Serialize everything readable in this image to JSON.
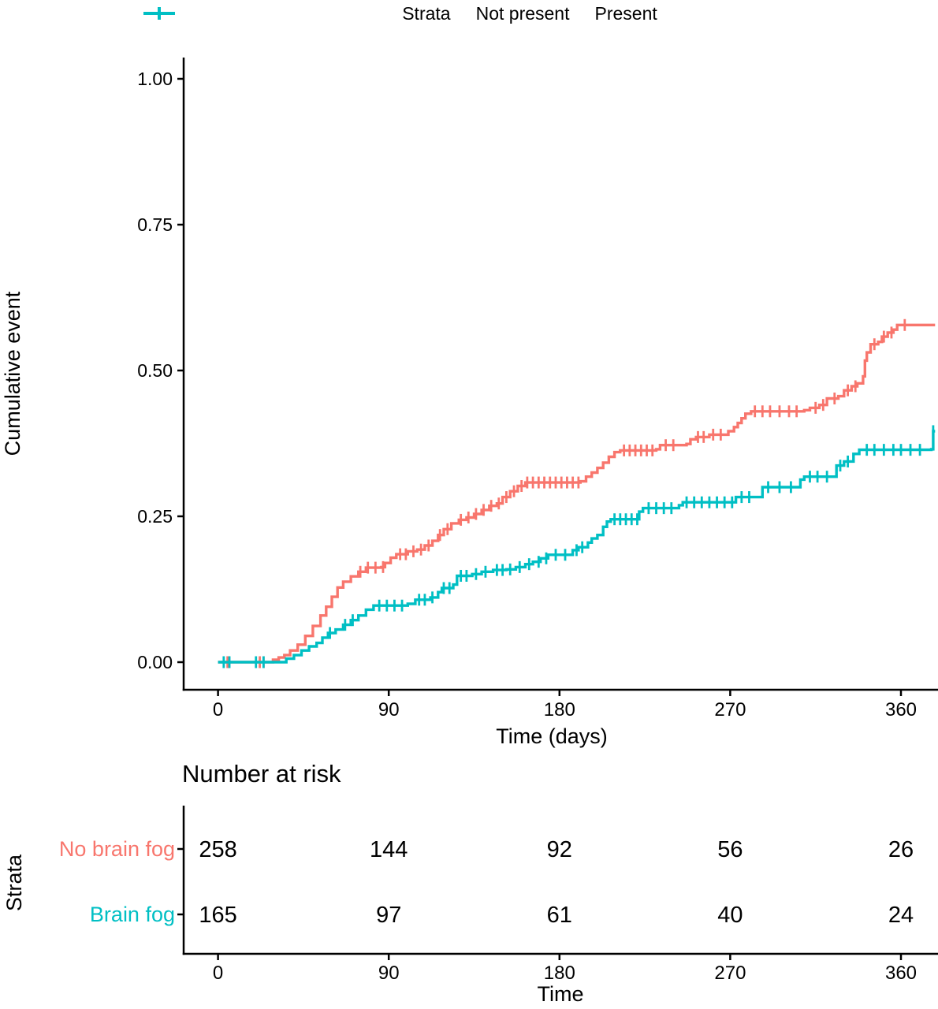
{
  "legend": {
    "title": "Strata",
    "entries": [
      {
        "label": "Not present",
        "color": "#F8766D"
      },
      {
        "label": "Present",
        "color": "#00BFC4"
      }
    ]
  },
  "chart_data": {
    "type": "line",
    "subtype": "kaplan-meier-cumulative-event-step-plot",
    "title": "",
    "xlabel": "Time (days)",
    "ylabel": "Cumulative event",
    "xlim": [
      0,
      378
    ],
    "ylim": [
      0,
      1
    ],
    "grid": false,
    "legend_position": "top",
    "xticks": [
      0,
      90,
      180,
      270,
      360
    ],
    "yticks": [
      0,
      0.25,
      0.5,
      0.75,
      1
    ],
    "ytick_labels": [
      "0.00",
      "0.25",
      "0.50",
      "0.75",
      "1.00"
    ],
    "series": [
      {
        "name": "Not present",
        "color": "#F8766D",
        "steps": [
          [
            0,
            0
          ],
          [
            27,
            0
          ],
          [
            29,
            0.004
          ],
          [
            32,
            0.008
          ],
          [
            35,
            0.012
          ],
          [
            38,
            0.02
          ],
          [
            42,
            0.03
          ],
          [
            46,
            0.045
          ],
          [
            50,
            0.062
          ],
          [
            54,
            0.08
          ],
          [
            57,
            0.095
          ],
          [
            60,
            0.112
          ],
          [
            63,
            0.128
          ],
          [
            66,
            0.138
          ],
          [
            70,
            0.147
          ],
          [
            74,
            0.155
          ],
          [
            78,
            0.162
          ],
          [
            86,
            0.163
          ],
          [
            88,
            0.17
          ],
          [
            91,
            0.179
          ],
          [
            94,
            0.185
          ],
          [
            100,
            0.19
          ],
          [
            105,
            0.193
          ],
          [
            109,
            0.2
          ],
          [
            113,
            0.208
          ],
          [
            116,
            0.218
          ],
          [
            119,
            0.228
          ],
          [
            123,
            0.238
          ],
          [
            127,
            0.244
          ],
          [
            131,
            0.248
          ],
          [
            135,
            0.254
          ],
          [
            139,
            0.261
          ],
          [
            143,
            0.268
          ],
          [
            147,
            0.272
          ],
          [
            150,
            0.283
          ],
          [
            154,
            0.293
          ],
          [
            158,
            0.302
          ],
          [
            162,
            0.308
          ],
          [
            191,
            0.31
          ],
          [
            194,
            0.318
          ],
          [
            197,
            0.325
          ],
          [
            200,
            0.333
          ],
          [
            203,
            0.342
          ],
          [
            206,
            0.352
          ],
          [
            209,
            0.36
          ],
          [
            212,
            0.363
          ],
          [
            231,
            0.365
          ],
          [
            233,
            0.372
          ],
          [
            247,
            0.374
          ],
          [
            249,
            0.382
          ],
          [
            252,
            0.386
          ],
          [
            259,
            0.39
          ],
          [
            269,
            0.396
          ],
          [
            272,
            0.403
          ],
          [
            274,
            0.41
          ],
          [
            276,
            0.418
          ],
          [
            278,
            0.426
          ],
          [
            281,
            0.43
          ],
          [
            309,
            0.432
          ],
          [
            312,
            0.436
          ],
          [
            317,
            0.441
          ],
          [
            321,
            0.452
          ],
          [
            327,
            0.456
          ],
          [
            330,
            0.466
          ],
          [
            334,
            0.473
          ],
          [
            337,
            0.478
          ],
          [
            340,
            0.49
          ],
          [
            341,
            0.517
          ],
          [
            342,
            0.531
          ],
          [
            344,
            0.545
          ],
          [
            348,
            0.549
          ],
          [
            350,
            0.558
          ],
          [
            353,
            0.565
          ],
          [
            356,
            0.57
          ],
          [
            358,
            0.578
          ],
          [
            378,
            0.578
          ]
        ],
        "censor_days": [
          5,
          22,
          24,
          75,
          79,
          83,
          87,
          96,
          99,
          103,
          107,
          111,
          117,
          121,
          128,
          132,
          136,
          140,
          144,
          148,
          152,
          156,
          160,
          163,
          166,
          169,
          172,
          175,
          178,
          181,
          184,
          187,
          190,
          214,
          217,
          220,
          223,
          226,
          229,
          236,
          240,
          253,
          256,
          261,
          265,
          283,
          287,
          291,
          296,
          301,
          305,
          315,
          319,
          325,
          332,
          336,
          346,
          351,
          355,
          362
        ]
      },
      {
        "name": "Present",
        "color": "#00BFC4",
        "steps": [
          [
            0,
            0
          ],
          [
            33,
            0
          ],
          [
            36,
            0.006
          ],
          [
            40,
            0.012
          ],
          [
            44,
            0.02
          ],
          [
            48,
            0.027
          ],
          [
            52,
            0.033
          ],
          [
            55,
            0.042
          ],
          [
            58,
            0.05
          ],
          [
            62,
            0.056
          ],
          [
            66,
            0.064
          ],
          [
            70,
            0.072
          ],
          [
            74,
            0.08
          ],
          [
            78,
            0.09
          ],
          [
            82,
            0.097
          ],
          [
            100,
            0.1
          ],
          [
            104,
            0.107
          ],
          [
            112,
            0.111
          ],
          [
            116,
            0.12
          ],
          [
            118,
            0.127
          ],
          [
            124,
            0.133
          ],
          [
            126,
            0.148
          ],
          [
            134,
            0.151
          ],
          [
            139,
            0.155
          ],
          [
            145,
            0.158
          ],
          [
            152,
            0.159
          ],
          [
            157,
            0.163
          ],
          [
            162,
            0.168
          ],
          [
            166,
            0.172
          ],
          [
            170,
            0.178
          ],
          [
            174,
            0.184
          ],
          [
            187,
            0.192
          ],
          [
            190,
            0.197
          ],
          [
            195,
            0.205
          ],
          [
            197,
            0.212
          ],
          [
            200,
            0.218
          ],
          [
            203,
            0.232
          ],
          [
            205,
            0.241
          ],
          [
            207,
            0.245
          ],
          [
            222,
            0.258
          ],
          [
            224,
            0.264
          ],
          [
            243,
            0.269
          ],
          [
            245,
            0.274
          ],
          [
            273,
            0.283
          ],
          [
            287,
            0.3
          ],
          [
            307,
            0.313
          ],
          [
            309,
            0.318
          ],
          [
            326,
            0.337
          ],
          [
            330,
            0.344
          ],
          [
            335,
            0.357
          ],
          [
            338,
            0.364
          ],
          [
            376,
            0.365
          ],
          [
            377,
            0.396
          ],
          [
            378,
            0.396
          ]
        ],
        "censor_days": [
          3,
          6,
          20,
          24,
          59,
          67,
          71,
          85,
          89,
          93,
          97,
          106,
          109,
          113,
          119,
          122,
          128,
          131,
          136,
          141,
          147,
          150,
          154,
          159,
          164,
          169,
          173,
          178,
          183,
          189,
          192,
          209,
          212,
          215,
          218,
          221,
          227,
          231,
          235,
          239,
          247,
          251,
          255,
          259,
          263,
          267,
          271,
          276,
          280,
          290,
          296,
          302,
          312,
          316,
          321,
          328,
          332,
          342,
          346,
          351,
          356,
          360,
          365,
          370,
          377
        ]
      }
    ],
    "risk_table": {
      "title": "Number at risk",
      "axis_label": "Strata",
      "time_label": "Time",
      "times": [
        0,
        90,
        180,
        270,
        360
      ],
      "rows": [
        {
          "label": "No brain fog",
          "color": "#F8766D",
          "values": [
            258,
            144,
            92,
            56,
            26
          ]
        },
        {
          "label": "Brain fog",
          "color": "#00BFC4",
          "values": [
            165,
            97,
            61,
            40,
            24
          ]
        }
      ]
    }
  }
}
